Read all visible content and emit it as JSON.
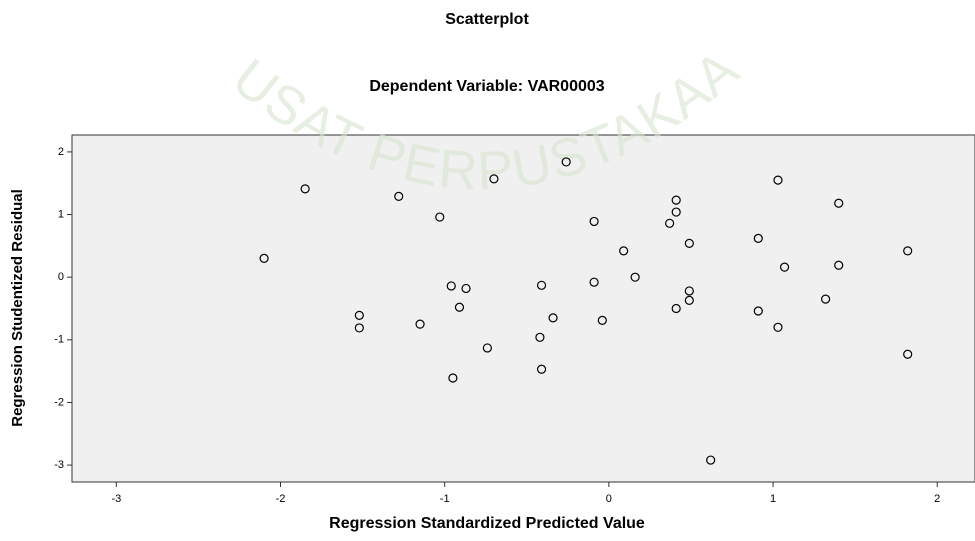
{
  "watermark": "USAT PERPUSTAKAA",
  "chart_data": {
    "type": "scatter",
    "title": "Scatterplot",
    "subtitle": "Dependent Variable: VAR00003",
    "x_label": "Regression Standardized Predicted Value",
    "y_label": "Regression Studentized Residual",
    "xlim": [
      -3.27,
      2.23
    ],
    "ylim": [
      -3.27,
      2.27
    ],
    "xticks": [
      -3,
      -2,
      -1,
      0,
      1,
      2
    ],
    "yticks": [
      -3,
      -2,
      -1,
      0,
      1,
      2
    ],
    "color": "#000000",
    "series": [
      {
        "x": [
          -2.1,
          -1.85,
          -1.28,
          -1.03,
          -1.52,
          -1.52,
          -1.15,
          -0.95,
          -0.91,
          -0.96,
          -0.87,
          -0.7,
          -0.74,
          -0.41,
          -0.41,
          -0.42,
          -0.26,
          -0.34,
          -0.09,
          -0.09,
          -0.04,
          0.09,
          0.16,
          0.37,
          0.41,
          0.41,
          0.41,
          0.49,
          0.49,
          0.49,
          0.91,
          0.91,
          1.03,
          1.03,
          1.07,
          1.32,
          1.4,
          1.4,
          1.82,
          1.82,
          0.62
        ],
        "values": [
          0.3,
          1.41,
          1.29,
          0.96,
          -0.61,
          -0.81,
          -0.75,
          -1.61,
          -0.48,
          -0.14,
          -0.18,
          1.57,
          -1.13,
          -0.13,
          -1.47,
          -0.96,
          1.84,
          -0.65,
          0.89,
          -0.08,
          -0.69,
          0.42,
          0.0,
          0.86,
          1.23,
          1.04,
          -0.5,
          -0.37,
          0.54,
          -0.22,
          0.62,
          -0.54,
          1.55,
          -0.8,
          0.16,
          -0.35,
          1.18,
          0.19,
          0.42,
          -1.23,
          -2.92
        ]
      }
    ]
  }
}
